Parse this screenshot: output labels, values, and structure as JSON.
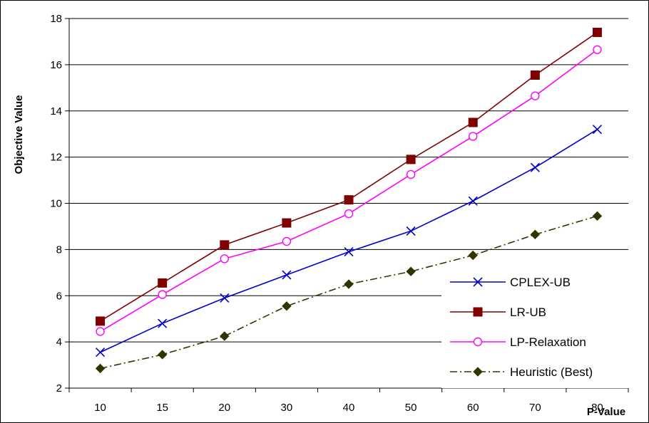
{
  "chart_data": {
    "type": "line",
    "xlabel": "P-Value",
    "ylabel": "Objective Value",
    "categories": [
      "10",
      "15",
      "20",
      "30",
      "40",
      "50",
      "60",
      "70",
      "80"
    ],
    "ylim": [
      2,
      18
    ],
    "yticks": [
      2,
      4,
      6,
      8,
      10,
      12,
      14,
      16,
      18
    ],
    "grid": "horizontal",
    "legend_position": "bottom-right",
    "series": [
      {
        "name": "CPLEX-UB",
        "color": "#0000cc",
        "marker": "x",
        "line_style": "solid",
        "values": [
          3.55,
          4.8,
          5.9,
          6.9,
          7.9,
          8.8,
          10.1,
          11.55,
          13.2
        ]
      },
      {
        "name": "LR-UB",
        "color": "#800000",
        "marker": "square",
        "line_style": "solid",
        "values": [
          4.9,
          6.55,
          8.2,
          9.15,
          10.15,
          11.9,
          13.5,
          15.55,
          17.4
        ]
      },
      {
        "name": "LP-Relaxation",
        "color": "#ff00ff",
        "marker": "circle",
        "line_style": "solid",
        "values": [
          4.45,
          6.05,
          7.6,
          8.35,
          9.55,
          11.25,
          12.9,
          14.65,
          16.65
        ]
      },
      {
        "name": "Heuristic (Best)",
        "color": "#333300",
        "marker": "diamond",
        "line_style": "dashdot",
        "values": [
          2.85,
          3.45,
          4.25,
          5.55,
          6.5,
          7.05,
          7.75,
          8.65,
          9.45
        ]
      }
    ]
  }
}
